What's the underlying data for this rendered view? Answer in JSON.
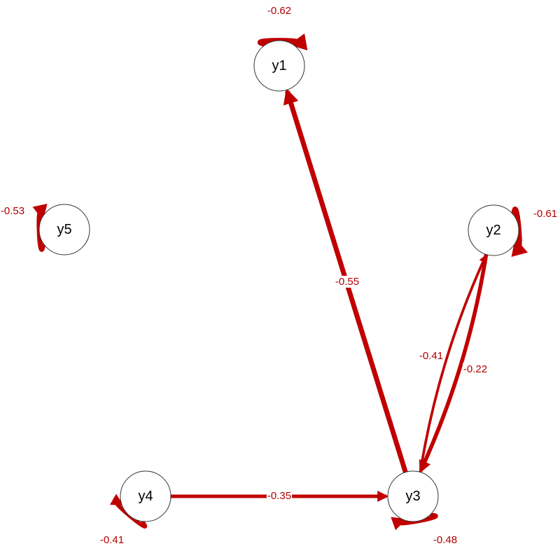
{
  "colors": {
    "edge": "#c00000",
    "edge_label": "#b40000",
    "node_fill": "#ffffff",
    "node_stroke": "#333333",
    "background": "#ffffff"
  },
  "nodes": [
    {
      "id": "y1",
      "label": "y1"
    },
    {
      "id": "y2",
      "label": "y2"
    },
    {
      "id": "y3",
      "label": "y3"
    },
    {
      "id": "y4",
      "label": "y4"
    },
    {
      "id": "y5",
      "label": "y5"
    }
  ],
  "edges": [
    {
      "from": "y3",
      "to": "y1",
      "label": "-0.55",
      "weight": 0.55
    },
    {
      "from": "y2",
      "to": "y3",
      "label": "-0.41",
      "weight": 0.41
    },
    {
      "from": "y3",
      "to": "y2",
      "label": "-0.22",
      "weight": 0.22
    },
    {
      "from": "y4",
      "to": "y3",
      "label": "-0.35",
      "weight": 0.35
    },
    {
      "from": "y1",
      "to": "y1",
      "label": "-0.62",
      "weight": 0.62
    },
    {
      "from": "y2",
      "to": "y2",
      "label": "-0.61",
      "weight": 0.61
    },
    {
      "from": "y3",
      "to": "y3",
      "label": "-0.48",
      "weight": 0.48
    },
    {
      "from": "y4",
      "to": "y4",
      "label": "-0.41",
      "weight": 0.41
    },
    {
      "from": "y5",
      "to": "y5",
      "label": "-0.53",
      "weight": 0.53
    }
  ]
}
